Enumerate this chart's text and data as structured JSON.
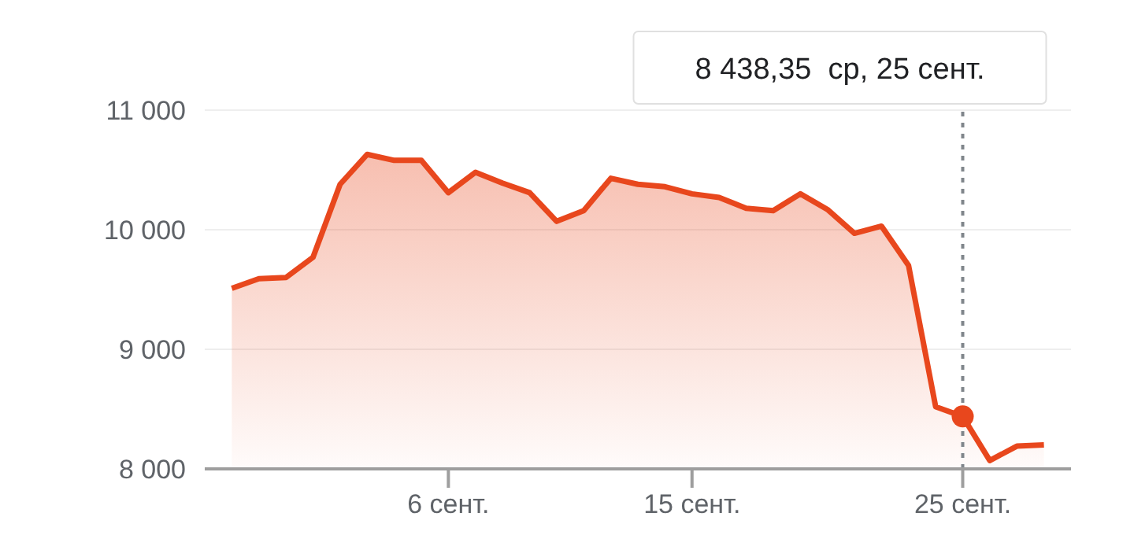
{
  "chart_data": {
    "type": "area",
    "x": [
      "--08-29",
      "--08-30",
      "--08-31",
      "--09-01",
      "--09-02",
      "--09-03",
      "--09-04",
      "--09-05",
      "--09-06",
      "--09-07",
      "--09-08",
      "--09-09",
      "--09-10",
      "--09-11",
      "--09-12",
      "--09-13",
      "--09-14",
      "--09-15",
      "--09-16",
      "--09-17",
      "--09-18",
      "--09-19",
      "--09-20",
      "--09-21",
      "--09-22",
      "--09-23",
      "--09-24",
      "--09-25",
      "--09-26",
      "--09-27",
      "--09-28"
    ],
    "series": [
      {
        "color": "#e8471d",
        "values": [
          9510,
          9590,
          9600,
          9770,
          10380,
          10630,
          10580,
          10580,
          10310,
          10480,
          10390,
          10310,
          10070,
          10160,
          10430,
          10380,
          10360,
          10300,
          10270,
          10180,
          10160,
          10300,
          10170,
          9970,
          10030,
          9700,
          8520,
          8438.35,
          8070,
          8190,
          8200
        ]
      }
    ],
    "xlim": [
      "--08-28",
      "--09-29"
    ],
    "xticks": [
      {
        "value": "--09-06",
        "label": "6 сент."
      },
      {
        "value": "--09-15",
        "label": "15 сент."
      },
      {
        "value": "--09-25",
        "label": "25 сент."
      }
    ],
    "ylim": [
      8000,
      11000
    ],
    "yticks": [
      {
        "value": 8000,
        "label": "8 000"
      },
      {
        "value": 9000,
        "label": "9 000"
      },
      {
        "value": 10000,
        "label": "10 000"
      },
      {
        "value": 11000,
        "label": "11 000"
      }
    ],
    "grid": "y",
    "marker": "none",
    "line_style": "solid",
    "ref_lines": [
      {
        "axis": "x",
        "value": "--09-25",
        "color": "#80868b",
        "line_style": "dotted"
      }
    ],
    "annotations": [
      "8 438,35  ср, 25 сент."
    ]
  }
}
